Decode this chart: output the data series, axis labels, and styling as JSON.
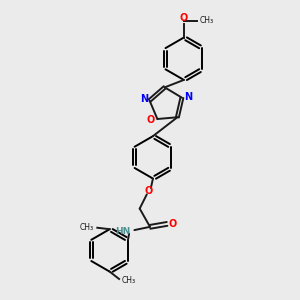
{
  "background_color": "#ebebeb",
  "bond_color": "#1a1a1a",
  "n_color": "#0000ff",
  "o_color": "#ff0000",
  "nh_color": "#4a9090",
  "figsize": [
    3.0,
    3.0
  ],
  "dpi": 100,
  "xlim": [
    0,
    10
  ],
  "ylim": [
    0,
    10
  ]
}
